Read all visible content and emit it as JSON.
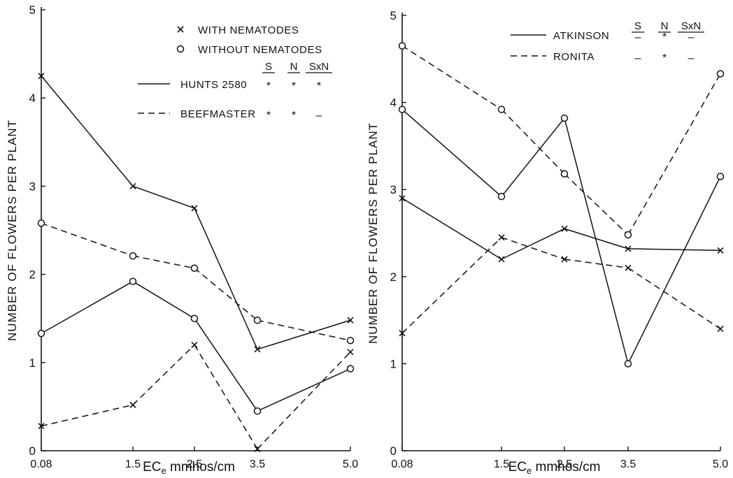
{
  "ink_color": "#111111",
  "background_color": "#ffffff",
  "chart_data": [
    {
      "type": "line",
      "ylabel": "NUMBER OF FLOWERS PER PLANT",
      "xlabel_main": "EC",
      "xlabel_sub": "e",
      "xlabel_rest": " mmhos/cm",
      "x_ticks": [
        "0.08",
        "1.5",
        "2.5",
        "3.5",
        "5.0"
      ],
      "y_ticks": [
        "0",
        "1",
        "2",
        "3",
        "4",
        "5"
      ],
      "ylim": [
        0,
        5
      ],
      "legend_markers": [
        {
          "marker": "x",
          "label": "WITH NEMATODES"
        },
        {
          "marker": "o",
          "label": "WITHOUT NEMATODES"
        }
      ],
      "legend_header": [
        "S",
        "N",
        "SxN"
      ],
      "legend_lines": [
        {
          "dash": "solid",
          "label": "HUNTS 2580",
          "sig": [
            "*",
            "*",
            "*"
          ]
        },
        {
          "dash": "dashed",
          "label": "BEEFMASTER",
          "sig": [
            "*",
            "*",
            "–"
          ]
        }
      ],
      "series": [
        {
          "name": "HUNTS 2580",
          "marker": "x",
          "dash": "solid",
          "values": [
            4.25,
            3.0,
            2.75,
            1.15,
            1.48
          ]
        },
        {
          "name": "HUNTS 2580",
          "marker": "o",
          "dash": "solid",
          "values": [
            1.33,
            1.92,
            1.5,
            0.45,
            0.93
          ]
        },
        {
          "name": "BEEFMASTER",
          "marker": "o",
          "dash": "dashed",
          "values": [
            2.58,
            2.21,
            2.07,
            1.48,
            1.25
          ]
        },
        {
          "name": "BEEFMASTER",
          "marker": "x",
          "dash": "dashed",
          "values": [
            0.28,
            0.52,
            1.2,
            0.02,
            1.12
          ]
        }
      ]
    },
    {
      "type": "line",
      "ylabel": "NUMBER OF FLOWERS PER PLANT",
      "xlabel_main": "EC",
      "xlabel_sub": "e",
      "xlabel_rest": " mmhos/cm",
      "x_ticks": [
        "0.08",
        "1.5",
        "2.5",
        "3.5",
        "5.0"
      ],
      "y_ticks": [
        "0",
        "1",
        "2",
        "3",
        "4",
        "5"
      ],
      "ylim": [
        0,
        5
      ],
      "legend_markers": [],
      "legend_header": [
        "S",
        "N",
        "SxN"
      ],
      "legend_lines": [
        {
          "dash": "solid",
          "label": "ATKINSON",
          "sig": [
            "–",
            "*",
            "–"
          ]
        },
        {
          "dash": "dashed",
          "label": "RONITA",
          "sig": [
            "–",
            "*",
            "–"
          ]
        }
      ],
      "series": [
        {
          "name": "ATKINSON",
          "marker": "o",
          "dash": "solid",
          "values": [
            3.92,
            2.92,
            3.82,
            1.0,
            3.15
          ]
        },
        {
          "name": "ATKINSON",
          "marker": "x",
          "dash": "solid",
          "values": [
            2.9,
            2.2,
            2.55,
            2.32,
            2.3
          ]
        },
        {
          "name": "RONITA",
          "marker": "o",
          "dash": "dashed",
          "values": [
            4.65,
            3.92,
            3.18,
            2.48,
            4.33
          ]
        },
        {
          "name": "RONITA",
          "marker": "x",
          "dash": "dashed",
          "values": [
            1.35,
            2.45,
            2.2,
            2.1,
            1.4
          ]
        }
      ]
    }
  ]
}
